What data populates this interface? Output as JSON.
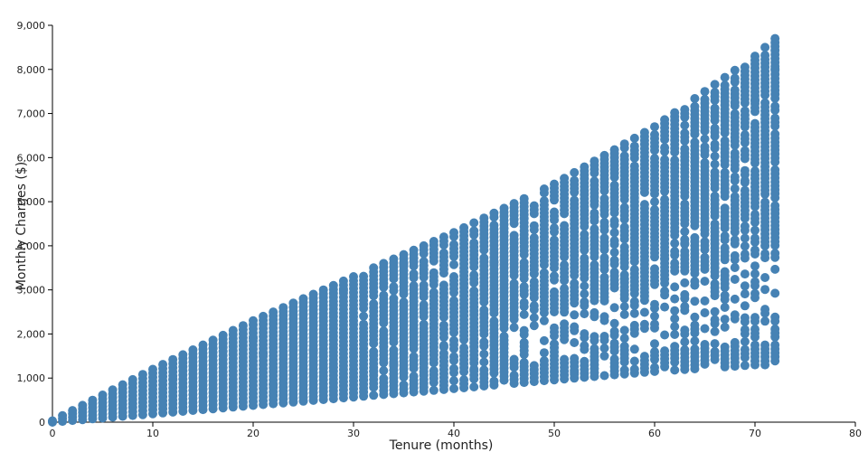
{
  "chart_data": {
    "type": "scatter",
    "title": "",
    "xlabel": "Tenure (months)",
    "ylabel": "Monthly Charges ($)",
    "xlim": [
      0,
      80
    ],
    "ylim": [
      0,
      9000
    ],
    "x_ticks": [
      0,
      10,
      20,
      30,
      40,
      50,
      60,
      70,
      80
    ],
    "x_tick_labels": [
      "0",
      "10",
      "20",
      "30",
      "40",
      "50",
      "60",
      "70",
      "80"
    ],
    "y_ticks": [
      0,
      1000,
      2000,
      3000,
      4000,
      5000,
      6000,
      7000,
      8000,
      9000
    ],
    "y_tick_labels": [
      "0",
      "1,000",
      "2,000",
      "3,000",
      "4,000",
      "5,000",
      "6,000",
      "7,000",
      "8,000",
      "9,000"
    ],
    "grid": false,
    "legend": "none",
    "point_color": "#4682b4",
    "series": [
      {
        "envelope": {
          "x": [
            0,
            10,
            20,
            30,
            40,
            50,
            60,
            70,
            72
          ],
          "y_min": [
            0,
            190,
            380,
            570,
            760,
            960,
            1150,
            1300,
            1300
          ],
          "y_max": [
            30,
            1200,
            2300,
            3300,
            4300,
            5400,
            6700,
            8300,
            8700
          ]
        }
      }
    ]
  }
}
